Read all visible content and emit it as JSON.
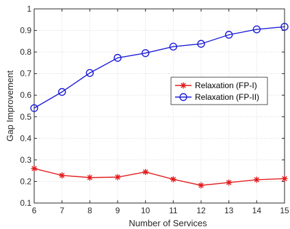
{
  "chart_data": {
    "type": "line",
    "title": "",
    "xlabel": "Number of Services",
    "ylabel": "Gap Improvement",
    "x": [
      6,
      7,
      8,
      9,
      10,
      11,
      12,
      13,
      14,
      15
    ],
    "xlim": [
      6,
      15
    ],
    "ylim": [
      0.1,
      1
    ],
    "xticks": [
      "6",
      "7",
      "8",
      "9",
      "10",
      "11",
      "12",
      "13",
      "14",
      "15"
    ],
    "yticks": [
      "0.1",
      "0.2",
      "0.3",
      "0.4",
      "0.5",
      "0.6",
      "0.7",
      "0.8",
      "0.9",
      "1"
    ],
    "grid": true,
    "legend_position": "right",
    "series": [
      {
        "name": "Relaxation (FP-I)",
        "marker": "star",
        "color": "#e31a1c",
        "values": [
          0.26,
          0.228,
          0.218,
          0.22,
          0.244,
          0.21,
          0.182,
          0.195,
          0.208,
          0.213
        ]
      },
      {
        "name": "Relaxation (FP-II)",
        "marker": "circle",
        "color": "#1a1ad6",
        "values": [
          0.54,
          0.615,
          0.703,
          0.773,
          0.795,
          0.825,
          0.838,
          0.88,
          0.905,
          0.917
        ]
      }
    ]
  }
}
